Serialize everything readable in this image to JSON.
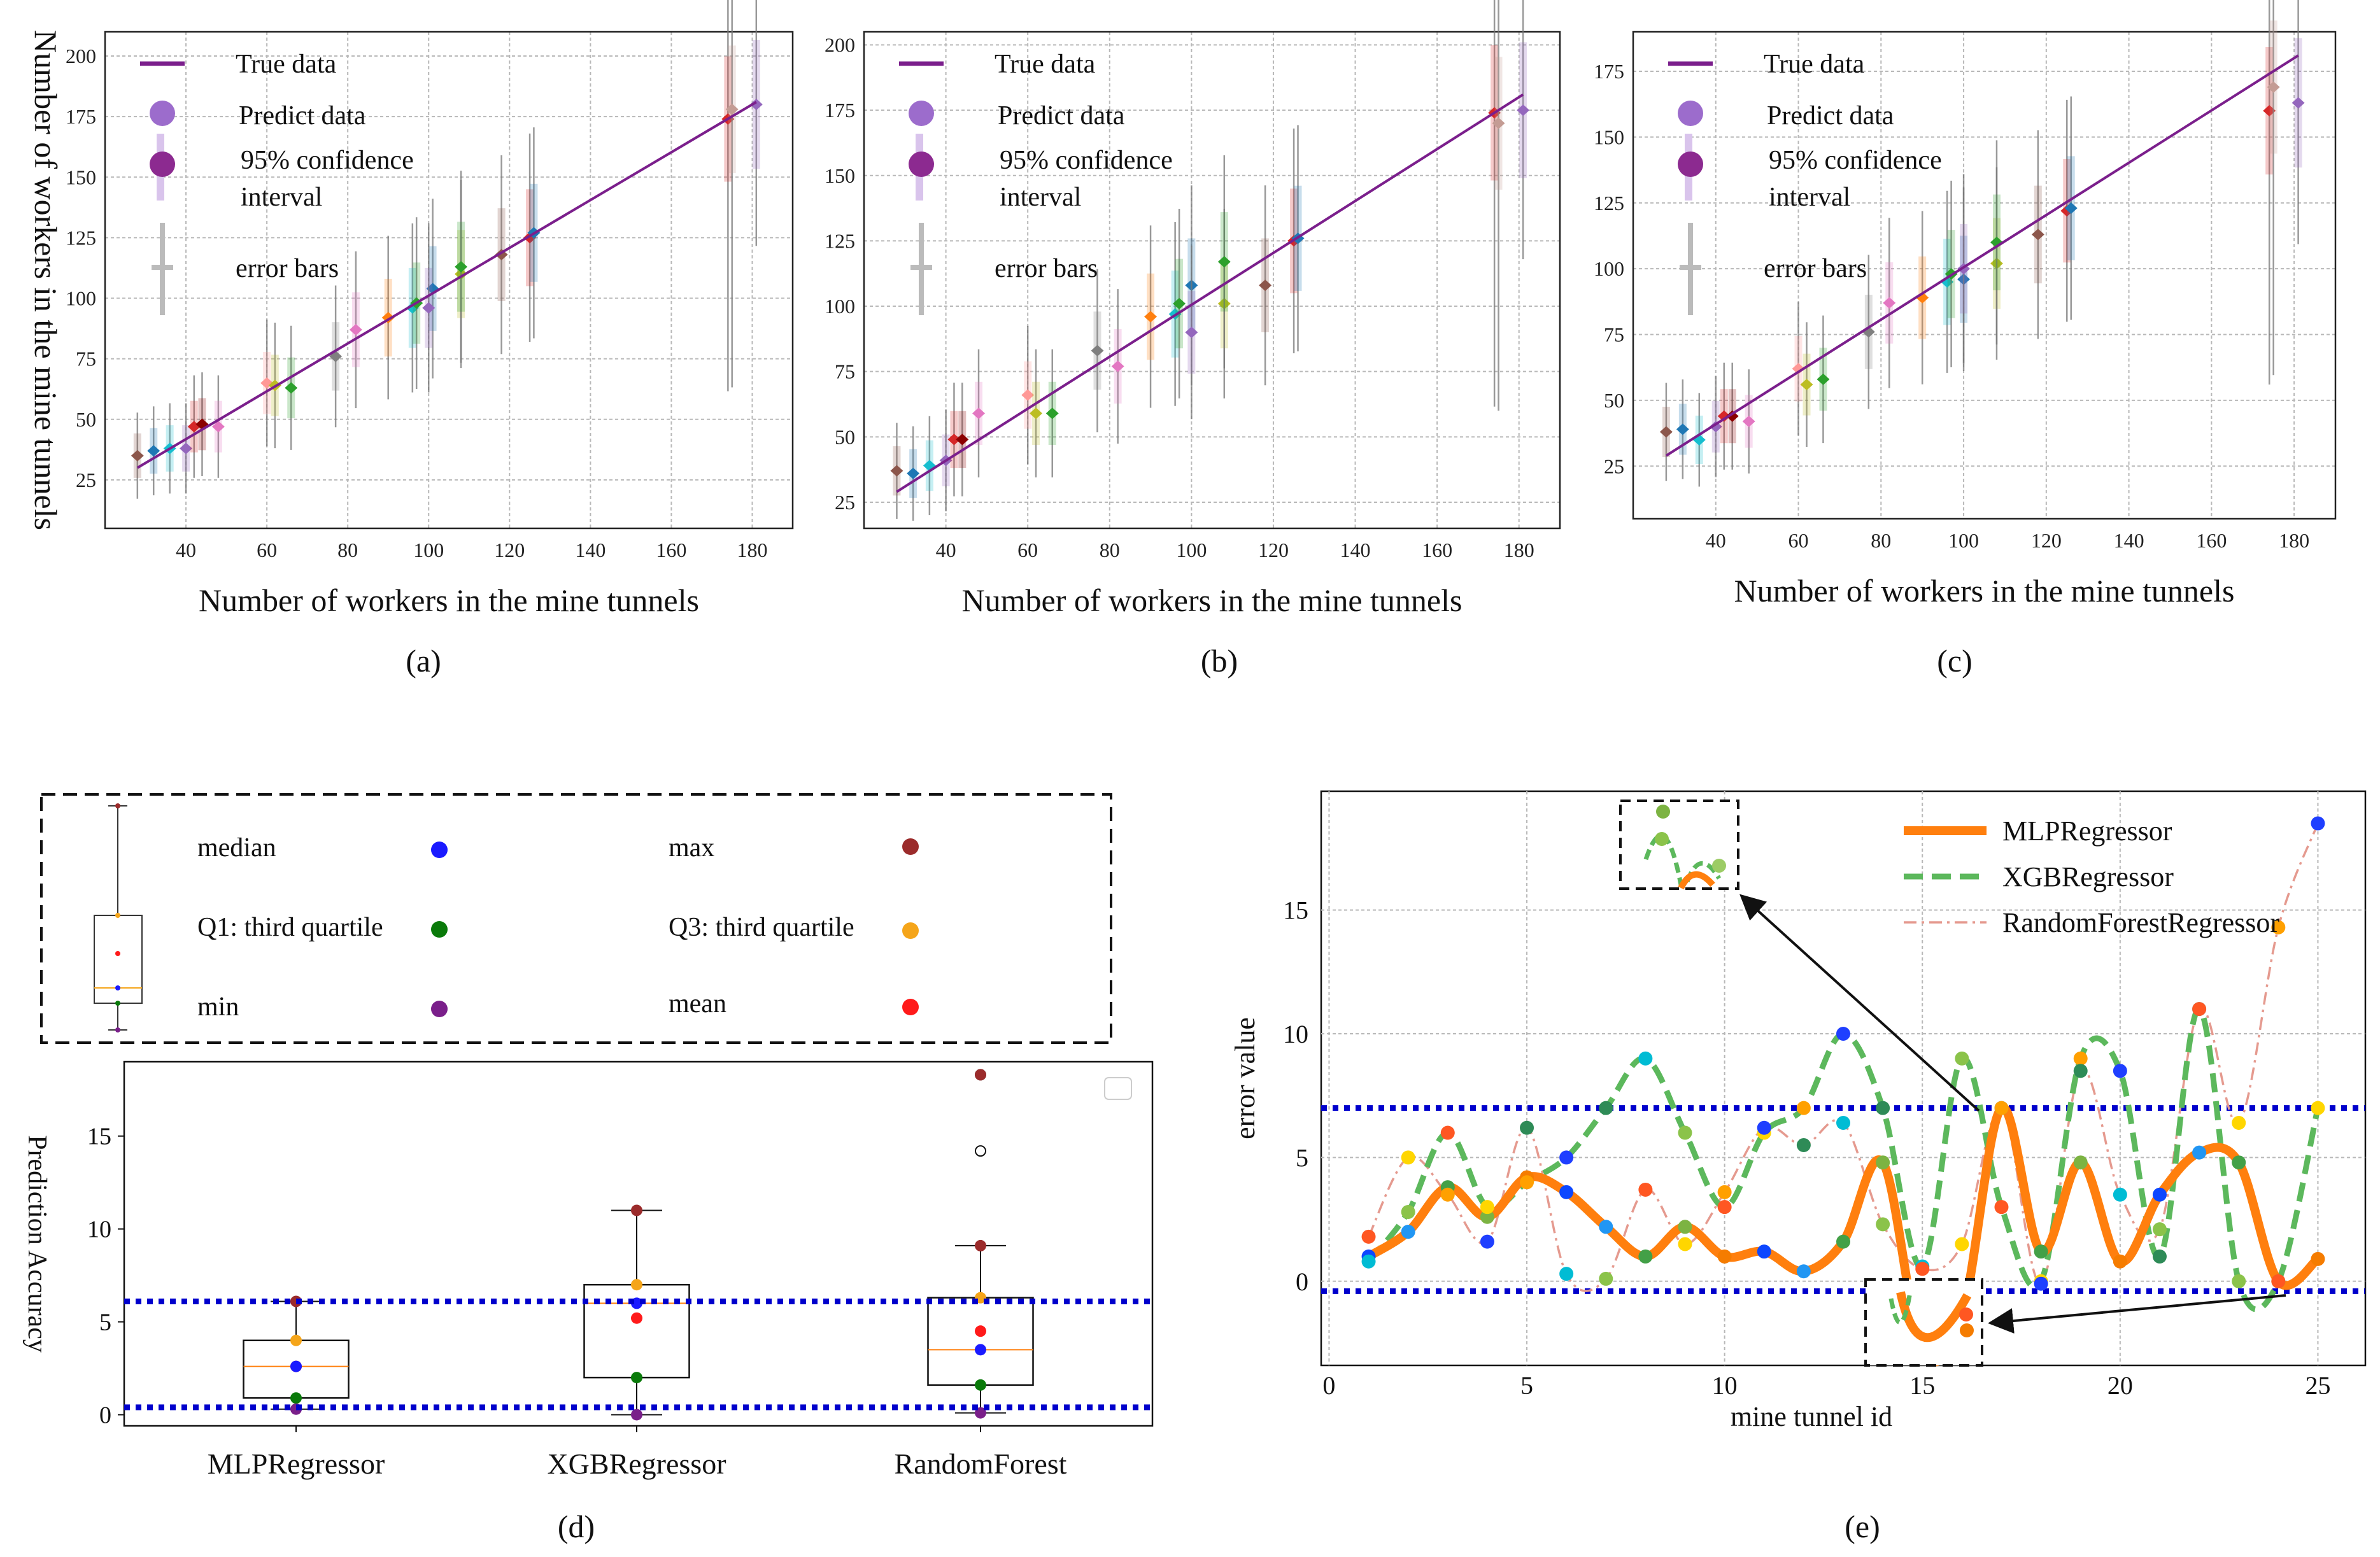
{
  "figure_caption_labels": [
    "(a)",
    "(b)",
    "(c)",
    "(d)",
    "(e)"
  ],
  "colors": {
    "true_line": "#7b1f8c",
    "predict": "#9c6ccc",
    "ci": "#d9c4ec",
    "err": "#bbbbbb",
    "blue_dotted": "#0000cc",
    "mlp": "#ff7f0e",
    "xgb": "#5cb85c",
    "rf": "#e59a8f"
  },
  "chart_data": [
    {
      "id": "a",
      "type": "scatter",
      "caption": "(a)",
      "xlabel": "Number of workers in the mine tunnels",
      "ylabel": "Number of workers in the mine tunnels",
      "xlim": [
        20,
        190
      ],
      "ylim": [
        5,
        210
      ],
      "xticks": [
        40,
        60,
        80,
        100,
        120,
        140,
        160,
        180
      ],
      "yticks": [
        25,
        50,
        75,
        100,
        125,
        150,
        175,
        200
      ],
      "legend": [
        "True data",
        "Predict data",
        "95% confidence",
        "interval",
        "error bars"
      ],
      "true_line": [
        [
          28,
          30
        ],
        [
          181,
          181
        ]
      ],
      "points": [
        [
          28,
          35
        ],
        [
          32,
          37
        ],
        [
          36,
          38
        ],
        [
          40,
          38
        ],
        [
          42,
          47
        ],
        [
          44,
          48
        ],
        [
          48,
          47
        ],
        [
          60,
          65
        ],
        [
          62,
          64
        ],
        [
          66,
          63
        ],
        [
          77,
          76
        ],
        [
          82,
          87
        ],
        [
          90,
          92
        ],
        [
          96,
          96
        ],
        [
          97,
          98
        ],
        [
          101,
          104
        ],
        [
          100,
          96
        ],
        [
          108,
          110
        ],
        [
          108,
          113
        ],
        [
          118,
          118
        ],
        [
          125,
          125
        ],
        [
          126,
          127
        ],
        [
          174,
          174
        ],
        [
          175,
          178
        ],
        [
          181,
          180
        ]
      ]
    },
    {
      "id": "b",
      "type": "scatter",
      "caption": "(b)",
      "xlabel": "Number of workers in the mine tunnels",
      "ylabel": "",
      "xlim": [
        20,
        190
      ],
      "ylim": [
        15,
        205
      ],
      "xticks": [
        40,
        60,
        80,
        100,
        120,
        140,
        160,
        180
      ],
      "yticks": [
        25,
        50,
        75,
        100,
        125,
        150,
        175,
        200
      ],
      "legend": [
        "True data",
        "Predict data",
        "95% confidence",
        "interval",
        "error bars"
      ],
      "true_line": [
        [
          28,
          29
        ],
        [
          181,
          181
        ]
      ],
      "points": [
        [
          28,
          37
        ],
        [
          32,
          36
        ],
        [
          36,
          39
        ],
        [
          40,
          41
        ],
        [
          42,
          49
        ],
        [
          44,
          49
        ],
        [
          48,
          59
        ],
        [
          60,
          66
        ],
        [
          62,
          59
        ],
        [
          66,
          59
        ],
        [
          77,
          83
        ],
        [
          82,
          77
        ],
        [
          90,
          96
        ],
        [
          96,
          97
        ],
        [
          97,
          101
        ],
        [
          100,
          108
        ],
        [
          100,
          90
        ],
        [
          108,
          101
        ],
        [
          108,
          117
        ],
        [
          118,
          108
        ],
        [
          125,
          125
        ],
        [
          126,
          126
        ],
        [
          174,
          174
        ],
        [
          175,
          170
        ],
        [
          181,
          175
        ]
      ]
    },
    {
      "id": "c",
      "type": "scatter",
      "caption": "(c)",
      "xlabel": "Number of workers in the mine tunnels",
      "ylabel": "",
      "xlim": [
        20,
        190
      ],
      "ylim": [
        5,
        190
      ],
      "xticks": [
        40,
        60,
        80,
        100,
        120,
        140,
        160,
        180
      ],
      "yticks": [
        25,
        50,
        75,
        100,
        125,
        150,
        175
      ],
      "legend": [
        "True data",
        "Predict data",
        "95% confidence",
        "interval",
        "error bars"
      ],
      "true_line": [
        [
          28,
          29
        ],
        [
          181,
          181
        ]
      ],
      "points": [
        [
          28,
          38
        ],
        [
          32,
          39
        ],
        [
          36,
          35
        ],
        [
          40,
          40
        ],
        [
          42,
          44
        ],
        [
          44,
          44
        ],
        [
          48,
          42
        ],
        [
          60,
          62
        ],
        [
          62,
          56
        ],
        [
          66,
          58
        ],
        [
          77,
          76
        ],
        [
          82,
          87
        ],
        [
          90,
          89
        ],
        [
          96,
          95
        ],
        [
          97,
          98
        ],
        [
          100,
          96
        ],
        [
          100,
          100
        ],
        [
          108,
          102
        ],
        [
          108,
          110
        ],
        [
          118,
          113
        ],
        [
          125,
          122
        ],
        [
          126,
          123
        ],
        [
          174,
          160
        ],
        [
          175,
          169
        ],
        [
          181,
          163
        ]
      ]
    },
    {
      "id": "d",
      "type": "box",
      "caption": "(d)",
      "ylabel": "Prediction Accuracy",
      "ylim": [
        -0.6,
        19
      ],
      "yticks": [
        0,
        5,
        10,
        15
      ],
      "categories": [
        "MLPRegressor",
        "XGBRegressor",
        "RandomForest"
      ],
      "boxes": [
        {
          "min": 0.3,
          "q1": 0.9,
          "median": 2.6,
          "q3": 4.0,
          "max": 6.1,
          "mean": 2.6,
          "fliers": []
        },
        {
          "min": 0.0,
          "q1": 2.0,
          "median": 6.0,
          "q3": 7.0,
          "max": 11.0,
          "mean": 5.2,
          "fliers": []
        },
        {
          "min": 0.1,
          "q1": 1.6,
          "median": 3.5,
          "q3": 6.3,
          "max": 9.1,
          "mean": 4.5,
          "fliers": [
            14.2,
            18.3
          ]
        }
      ],
      "hlines": [
        6.1,
        0.4
      ],
      "legend": [
        {
          "label": "median",
          "color": "#1a1aff"
        },
        {
          "label": "Q1: third quartile",
          "color": "#0a7a0a"
        },
        {
          "label": "min",
          "color": "#7a1f8a"
        },
        {
          "label": "max",
          "color": "#9b2b2b"
        },
        {
          "label": "Q3: third quartile",
          "color": "#f5a51a"
        },
        {
          "label": "mean",
          "color": "#ff1a1a"
        }
      ]
    },
    {
      "id": "e",
      "type": "line",
      "caption": "(e)",
      "xlabel": "mine tunnel id",
      "ylabel": "error value",
      "xlim": [
        -0.2,
        26.2
      ],
      "ylim": [
        -3.4,
        19.8
      ],
      "xticks": [
        0,
        5,
        10,
        15,
        20,
        25
      ],
      "yticks": [
        0,
        5,
        10,
        15
      ],
      "hlines": [
        7.0,
        -0.4
      ],
      "x": [
        1,
        2,
        3,
        4,
        5,
        6,
        7,
        8,
        9,
        10,
        11,
        12,
        13,
        14,
        15,
        16,
        17,
        18,
        19,
        20,
        21,
        22,
        23,
        24,
        25
      ],
      "series": [
        {
          "name": "MLPRegressor",
          "values": [
            1.0,
            2.0,
            3.8,
            2.6,
            4.2,
            3.6,
            2.2,
            1.0,
            2.2,
            1.0,
            1.2,
            0.4,
            1.6,
            4.8,
            -2.8,
            -1.4,
            7.0,
            1.2,
            4.8,
            0.8,
            3.5,
            5.2,
            4.8,
            0.0,
            0.9
          ]
        },
        {
          "name": "XGBRegressor",
          "values": [
            0.8,
            2.8,
            6.0,
            3.0,
            4.0,
            5.0,
            7.0,
            9.0,
            6.0,
            3.0,
            6.0,
            7.0,
            10.0,
            7.0,
            0.6,
            9.0,
            3.0,
            0.0,
            9.0,
            8.5,
            1.0,
            11.0,
            0.0,
            0.0,
            7.0
          ]
        },
        {
          "name": "RandomForestRegressor",
          "values": [
            1.8,
            5.0,
            3.5,
            1.6,
            6.2,
            0.3,
            0.1,
            3.7,
            1.5,
            3.6,
            6.2,
            5.5,
            6.4,
            2.3,
            0.5,
            1.5,
            7.0,
            -0.1,
            8.5,
            3.5,
            2.1,
            11.0,
            6.4,
            14.3,
            18.5
          ]
        }
      ]
    }
  ]
}
